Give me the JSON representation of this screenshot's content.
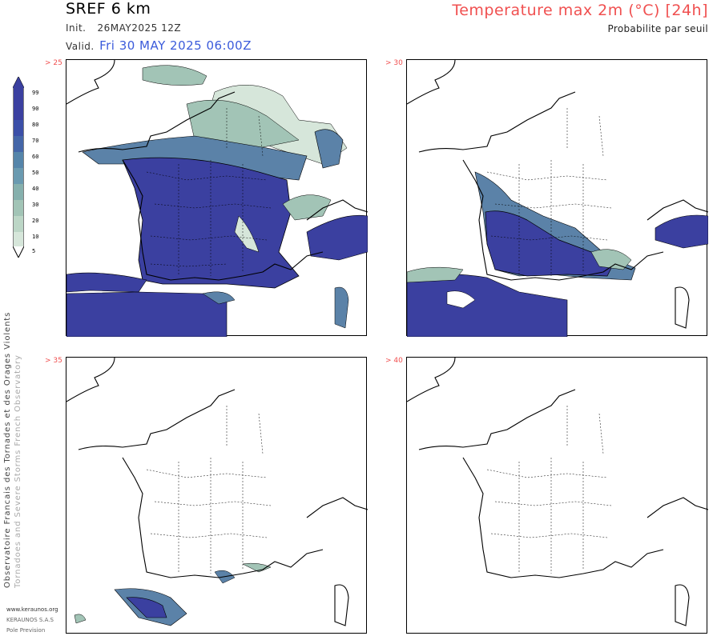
{
  "header": {
    "model": "SREF 6 km",
    "init_label": "Init.",
    "init_value": "26MAY2025 12Z",
    "valid_label": "Valid.",
    "valid_value": "Fri 30 MAY 2025 06:00Z",
    "title": "Temperature max 2m (°C) [24h]",
    "subtitle": "Probabilite par seuil"
  },
  "legend": {
    "levels": [
      "99",
      "90",
      "80",
      "70",
      "60",
      "50",
      "40",
      "30",
      "20",
      "10",
      "5"
    ],
    "colors": [
      "#3b40a0",
      "#3b40a0",
      "#3b4fa8",
      "#4466a8",
      "#5585aa",
      "#6a9ab0",
      "#86b0ad",
      "#a2c4b6",
      "#bcd6c6",
      "#d6e6da",
      "#ffffff"
    ]
  },
  "panels": [
    {
      "threshold": "> 25"
    },
    {
      "threshold": "> 30"
    },
    {
      "threshold": "> 35"
    },
    {
      "threshold": "> 40"
    }
  ],
  "sidebar": {
    "org_fr": "Observatoire Francais des Tornades et des Orages Violents",
    "org_en": "Tornadoes and Severe Storms French Observatory"
  },
  "footer": {
    "website": "www.keraunos.org",
    "company": "KERAUNOS S.A.S",
    "unit": "Pole Prevision"
  },
  "colors": {
    "dark": "#3b40a0",
    "mid": "#5b82a8",
    "light": "#a2c4b6",
    "pale": "#d6e6da",
    "title_red": "#f05050",
    "valid_blue": "#3b5bdb"
  }
}
